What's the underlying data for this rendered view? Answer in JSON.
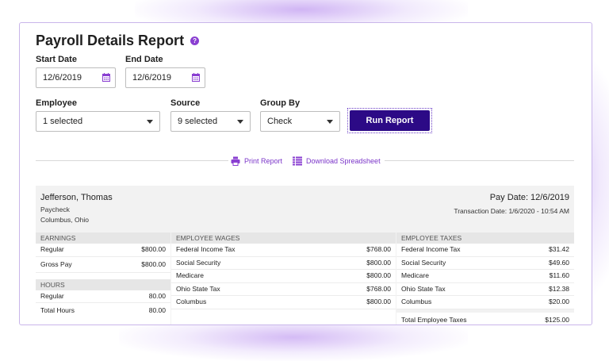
{
  "title": "Payroll Details Report",
  "start_date": {
    "label": "Start Date",
    "value": "12/6/2019"
  },
  "end_date": {
    "label": "End Date",
    "value": "12/6/2019"
  },
  "employee": {
    "label": "Employee",
    "value": "1 selected"
  },
  "source": {
    "label": "Source",
    "value": "9 selected"
  },
  "group_by": {
    "label": "Group By",
    "value": "Check"
  },
  "run_button": "Run Report",
  "links": {
    "print": "Print Report",
    "download": "Download Spreadsheet"
  },
  "colors": {
    "accent": "#7b35c9",
    "button": "#2c0a86"
  },
  "report": {
    "name": "Jefferson, Thomas",
    "type": "Paycheck",
    "location": "Columbus, Ohio",
    "pay_date": "Pay Date: 12/6/2019",
    "transaction_date": "Transaction Date: 1/6/2020 - 10:54 AM",
    "earnings": {
      "header": "EARNINGS",
      "rows": [
        {
          "label": "Regular",
          "value": "$800.00"
        },
        {
          "label": "Gross Pay",
          "value": "$800.00"
        }
      ]
    },
    "hours": {
      "header": "HOURS",
      "rows": [
        {
          "label": "Regular",
          "value": "80.00"
        },
        {
          "label": "Total Hours",
          "value": "80.00"
        }
      ]
    },
    "wages": {
      "header": "EMPLOYEE WAGES",
      "rows": [
        {
          "label": "Federal Income Tax",
          "value": "$768.00"
        },
        {
          "label": "Social Security",
          "value": "$800.00"
        },
        {
          "label": "Medicare",
          "value": "$800.00"
        },
        {
          "label": "Ohio State Tax",
          "value": "$768.00"
        },
        {
          "label": "Columbus",
          "value": "$800.00"
        }
      ]
    },
    "taxes": {
      "header": "EMPLOYEE TAXES",
      "rows": [
        {
          "label": "Federal Income Tax",
          "value": "$31.42"
        },
        {
          "label": "Social Security",
          "value": "$49.60"
        },
        {
          "label": "Medicare",
          "value": "$11.60"
        },
        {
          "label": "Ohio State Tax",
          "value": "$12.38"
        },
        {
          "label": "Columbus",
          "value": "$20.00"
        }
      ],
      "total_label": "Total Employee Taxes",
      "total_value": "$125.00"
    }
  }
}
